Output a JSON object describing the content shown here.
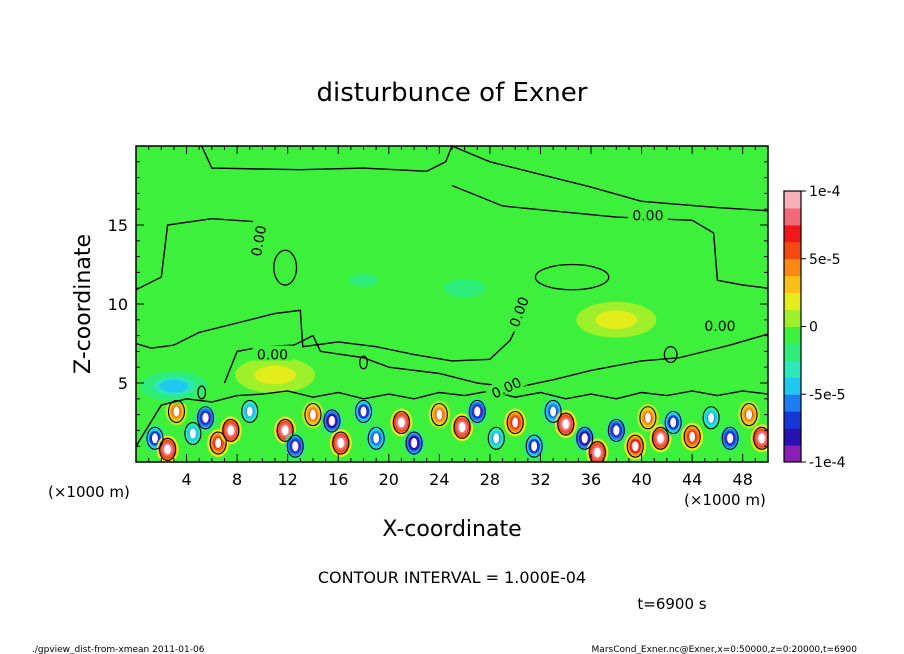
{
  "chart_data": {
    "type": "heatmap",
    "title": "disturbunce of Exner",
    "xlabel": "X-coordinate",
    "ylabel": "Z-coordinate",
    "x_unit_label": "(×1000 m)",
    "x_unit_label_right": "(×1000 m)",
    "xlim": [
      0,
      50
    ],
    "ylim": [
      0,
      20
    ],
    "x_ticks": [
      4,
      8,
      12,
      16,
      20,
      24,
      28,
      32,
      36,
      40,
      44,
      48
    ],
    "y_ticks": [
      5,
      10,
      15
    ],
    "colorbar": {
      "min": -0.0001,
      "max": 0.0001,
      "tick_labels": [
        "1e-4",
        "5e-5",
        "0",
        "-5e-5",
        "-1e-4"
      ],
      "tick_values": [
        0.0001,
        5e-05,
        0,
        -5e-05,
        -0.0001
      ],
      "colors_low_to_high": [
        "#8a1fb4",
        "#2a12b0",
        "#1438d8",
        "#1e7cf0",
        "#20c8f0",
        "#2ce8b8",
        "#2eec78",
        "#3cf03c",
        "#9ef02a",
        "#e4ec1c",
        "#f8c018",
        "#fa8a14",
        "#f44a12",
        "#f01818",
        "#f06a7a",
        "#f8b0b8"
      ]
    },
    "contour_interval_text": "CONTOUR INTERVAL = 1.000E-04",
    "contour_label": "0.00",
    "time_text": "t=6900 s",
    "background_level": 0,
    "features": [
      {
        "x": 1.5,
        "z": 1.5,
        "value": -8e-05
      },
      {
        "x": 2.5,
        "z": 0.8,
        "value": 0.0001
      },
      {
        "x": 3.2,
        "z": 3.2,
        "value": 6e-05
      },
      {
        "x": 4.5,
        "z": 1.8,
        "value": -5e-05
      },
      {
        "x": 5.5,
        "z": 2.8,
        "value": -9e-05
      },
      {
        "x": 6.5,
        "z": 1.2,
        "value": 7e-05
      },
      {
        "x": 7.5,
        "z": 2.0,
        "value": 0.0001
      },
      {
        "x": 9.0,
        "z": 3.2,
        "value": -6e-05
      },
      {
        "x": 11.8,
        "z": 2.0,
        "value": 0.0001
      },
      {
        "x": 12.6,
        "z": 1.0,
        "value": -9e-05
      },
      {
        "x": 14.0,
        "z": 3.0,
        "value": 6e-05
      },
      {
        "x": 15.5,
        "z": 2.6,
        "value": -0.0001
      },
      {
        "x": 16.2,
        "z": 1.2,
        "value": 0.0001
      },
      {
        "x": 18.0,
        "z": 3.2,
        "value": -8e-05
      },
      {
        "x": 19.0,
        "z": 1.5,
        "value": -7e-05
      },
      {
        "x": 21.0,
        "z": 2.5,
        "value": 0.0001
      },
      {
        "x": 22.0,
        "z": 1.2,
        "value": -0.0001
      },
      {
        "x": 24.0,
        "z": 3.0,
        "value": 5e-05
      },
      {
        "x": 25.8,
        "z": 2.2,
        "value": 0.0001
      },
      {
        "x": 27.0,
        "z": 3.2,
        "value": -9e-05
      },
      {
        "x": 28.5,
        "z": 1.5,
        "value": -6e-05
      },
      {
        "x": 30.0,
        "z": 2.5,
        "value": 7e-05
      },
      {
        "x": 31.5,
        "z": 1.0,
        "value": -8e-05
      },
      {
        "x": 33.0,
        "z": 3.2,
        "value": -7e-05
      },
      {
        "x": 34.0,
        "z": 2.4,
        "value": 0.0001
      },
      {
        "x": 35.5,
        "z": 1.5,
        "value": -0.0001
      },
      {
        "x": 36.5,
        "z": 0.6,
        "value": 0.0001
      },
      {
        "x": 38.0,
        "z": 2.0,
        "value": -9e-05
      },
      {
        "x": 39.5,
        "z": 1.0,
        "value": 8e-05
      },
      {
        "x": 40.5,
        "z": 2.8,
        "value": 6e-05
      },
      {
        "x": 41.5,
        "z": 1.5,
        "value": 0.0001
      },
      {
        "x": 42.5,
        "z": 2.5,
        "value": -8e-05
      },
      {
        "x": 44.0,
        "z": 1.6,
        "value": 7e-05
      },
      {
        "x": 45.5,
        "z": 2.8,
        "value": -6e-05
      },
      {
        "x": 47.0,
        "z": 1.5,
        "value": -9e-05
      },
      {
        "x": 48.5,
        "z": 3.0,
        "value": 6e-05
      },
      {
        "x": 49.5,
        "z": 1.5,
        "value": 0.0001
      },
      {
        "x": 3.0,
        "z": 4.8,
        "value": -4e-05
      },
      {
        "x": 11.0,
        "z": 5.5,
        "value": 2e-05
      },
      {
        "x": 26.0,
        "z": 11.0,
        "value": -2e-05
      },
      {
        "x": 18.0,
        "z": 11.5,
        "value": -1.5e-05
      },
      {
        "x": 38.0,
        "z": 9.0,
        "value": 2e-05
      }
    ]
  },
  "footer": {
    "left": "./gpview_dist-from-xmean  2011-01-06",
    "right": "MarsCond_Exner.nc@Exner,x=0:50000,z=0:20000,t=6900"
  }
}
